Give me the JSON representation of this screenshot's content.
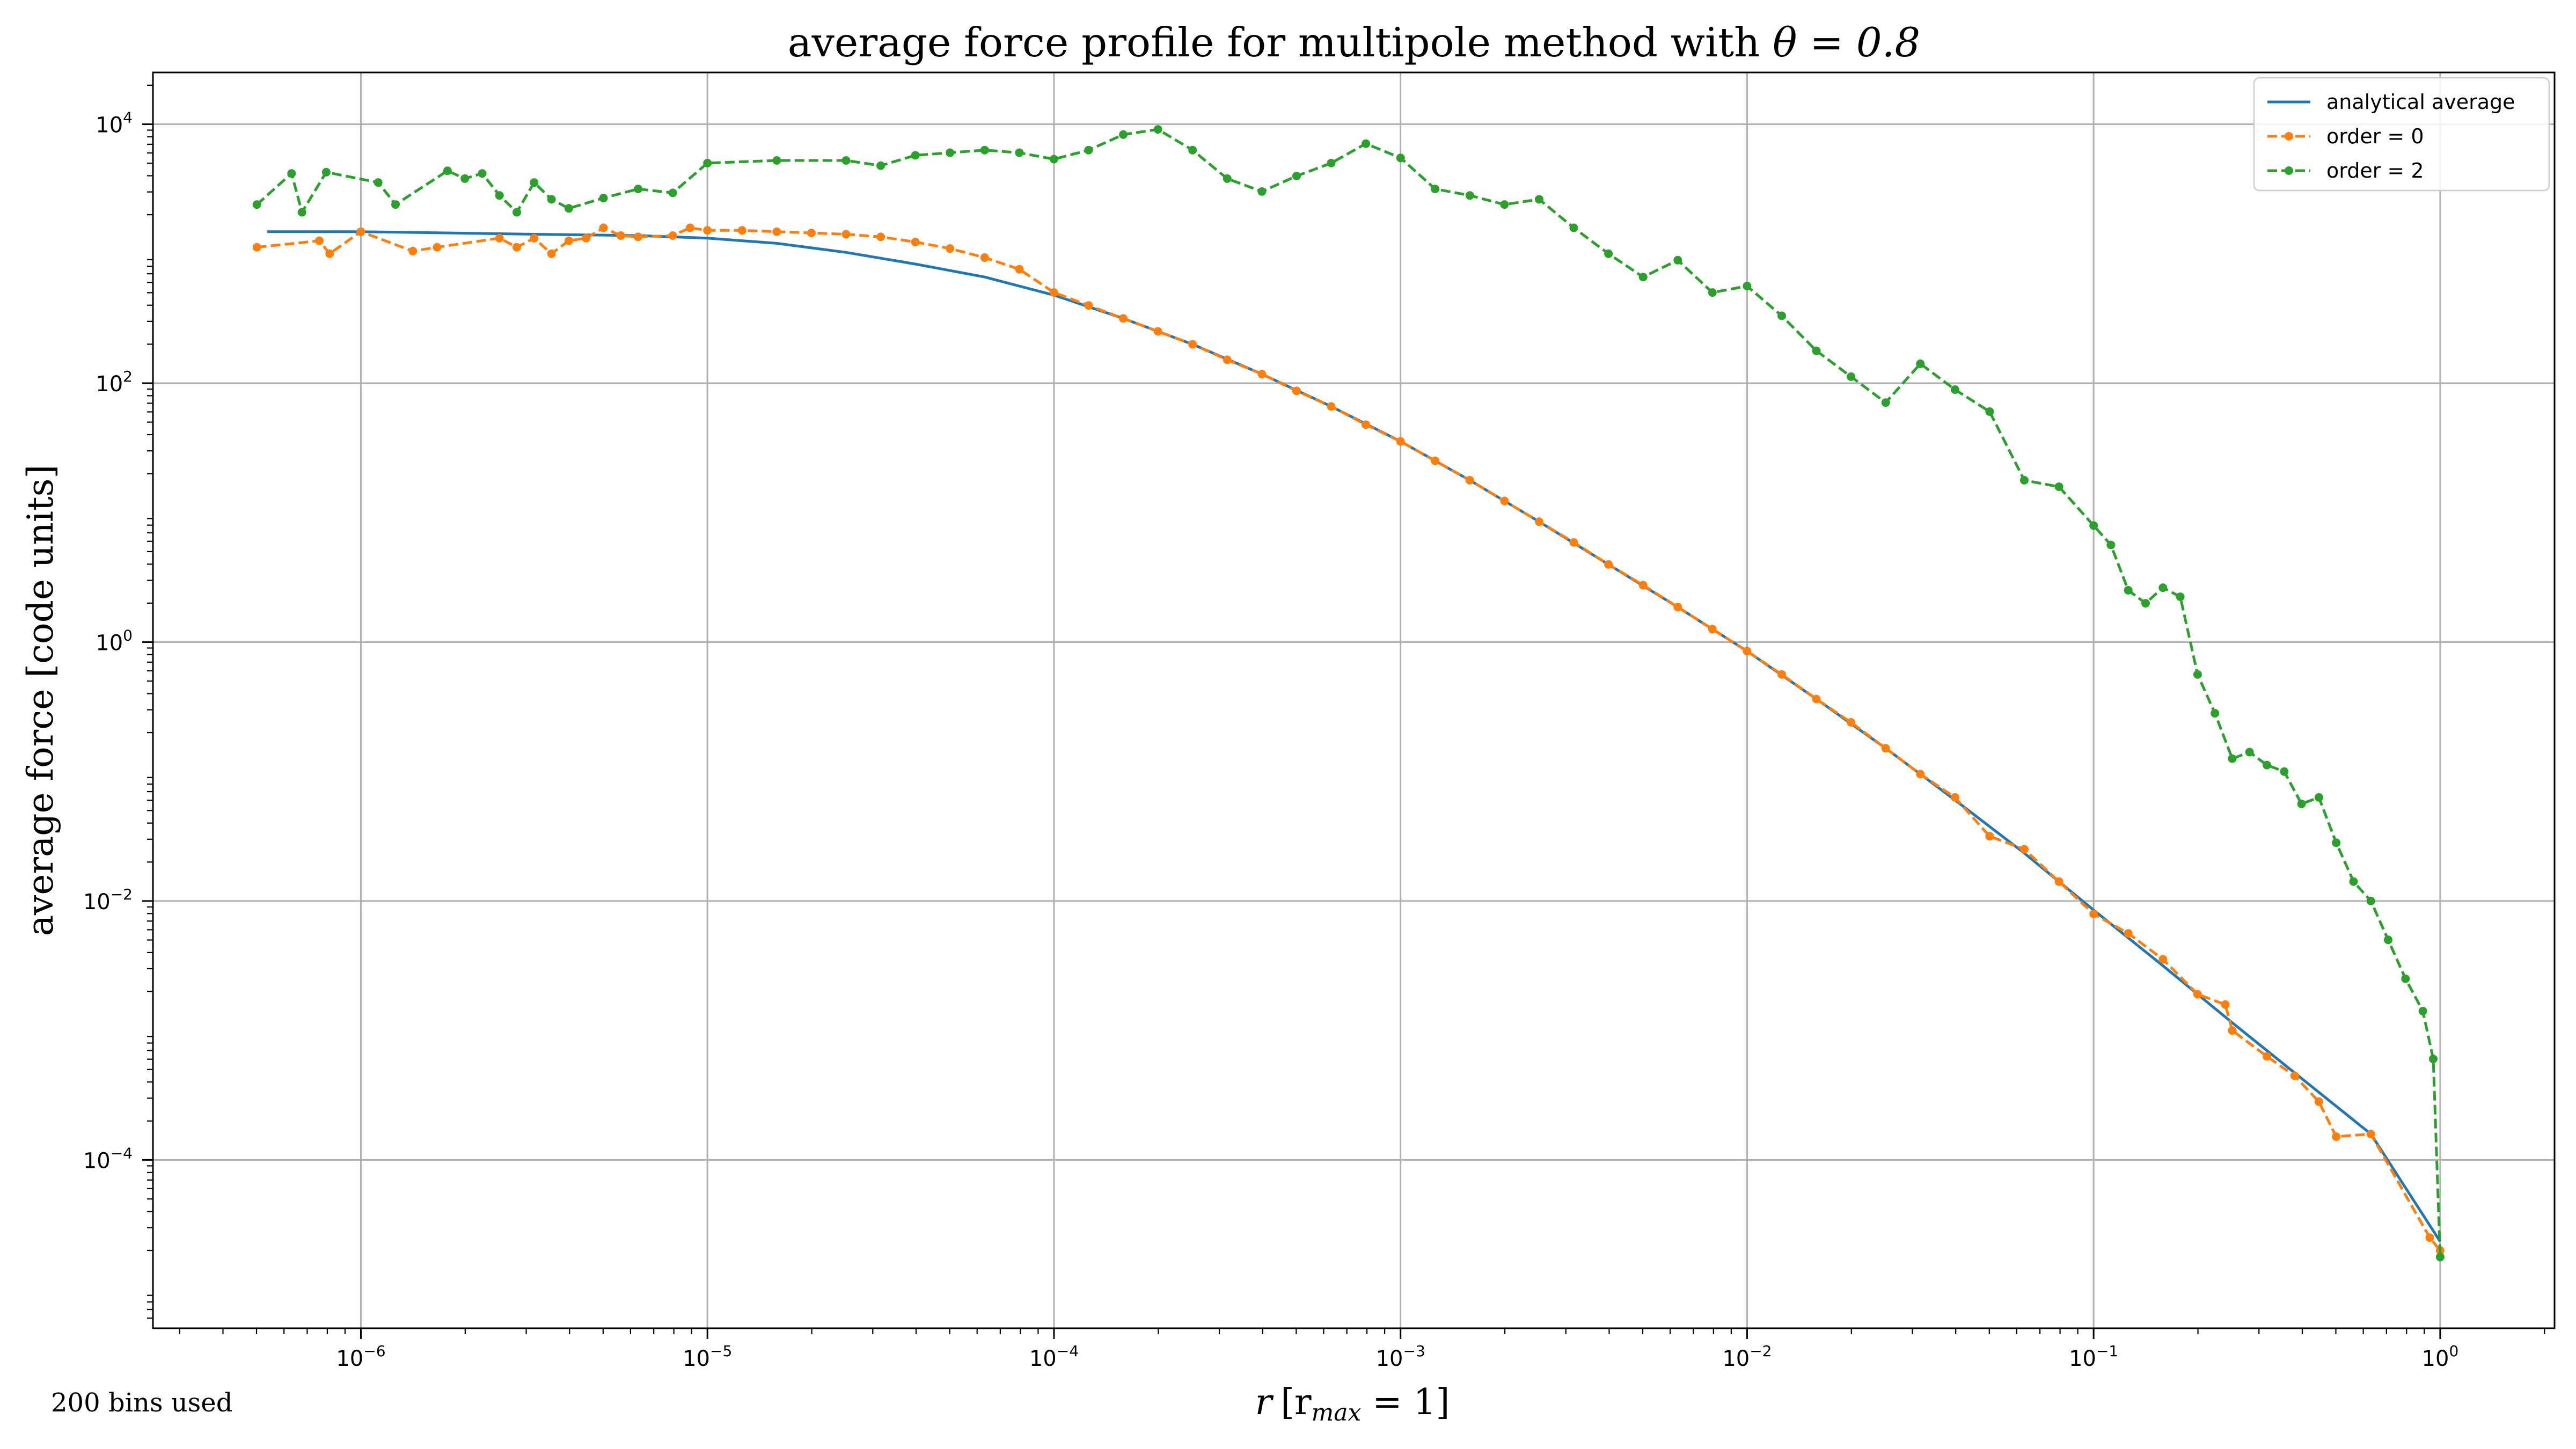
{
  "chart_data": {
    "type": "line",
    "title_prefix": "average force profile for multipole method with ",
    "title_math": "θ = 0.8",
    "xlabel_var": "r",
    "xlabel_unit": "[r",
    "xlabel_sub": "max",
    "xlabel_end": " = 1]",
    "ylabel": "average force [code units]",
    "xscale": "log",
    "yscale": "log",
    "xlim_exp": [
      -6.6,
      0.33
    ],
    "ylim_exp": [
      -5.3,
      4.4
    ],
    "grid": true,
    "legend_position": "top-right",
    "xticks": [
      {
        "base": "10",
        "exp": "−6",
        "value": -6
      },
      {
        "base": "10",
        "exp": "−5",
        "value": -5
      },
      {
        "base": "10",
        "exp": "−4",
        "value": -4
      },
      {
        "base": "10",
        "exp": "−3",
        "value": -3
      },
      {
        "base": "10",
        "exp": "−2",
        "value": -2
      },
      {
        "base": "10",
        "exp": "−1",
        "value": -1
      },
      {
        "base": "10",
        "exp": "0",
        "value": 0
      }
    ],
    "yticks": [
      {
        "base": "10",
        "exp": "4",
        "value": 4
      },
      {
        "base": "10",
        "exp": "2",
        "value": 2
      },
      {
        "base": "10",
        "exp": "0",
        "value": 0
      },
      {
        "base": "10",
        "exp": "−2",
        "value": -2
      },
      {
        "base": "10",
        "exp": "−4",
        "value": -4
      }
    ],
    "series": [
      {
        "name": "analytical average",
        "color": "#1f77b4",
        "style": "solid",
        "markers": false,
        "points_log10": [
          [
            -6.27,
            3.17
          ],
          [
            -6.0,
            3.17
          ],
          [
            -5.5,
            3.15
          ],
          [
            -5.2,
            3.14
          ],
          [
            -5.0,
            3.12
          ],
          [
            -4.8,
            3.08
          ],
          [
            -4.6,
            3.01
          ],
          [
            -4.4,
            2.92
          ],
          [
            -4.2,
            2.82
          ],
          [
            -4.0,
            2.68
          ],
          [
            -3.8,
            2.5
          ],
          [
            -3.6,
            2.3
          ],
          [
            -3.4,
            2.07
          ],
          [
            -3.2,
            1.82
          ],
          [
            -3.0,
            1.55
          ],
          [
            -2.8,
            1.25
          ],
          [
            -2.6,
            0.93
          ],
          [
            -2.4,
            0.6
          ],
          [
            -2.2,
            0.27
          ],
          [
            -2.0,
            -0.07
          ],
          [
            -1.8,
            -0.44
          ],
          [
            -1.6,
            -0.82
          ],
          [
            -1.4,
            -1.22
          ],
          [
            -1.2,
            -1.63
          ],
          [
            -1.0,
            -2.07
          ],
          [
            -0.8,
            -2.5
          ],
          [
            -0.6,
            -2.94
          ],
          [
            -0.4,
            -3.37
          ],
          [
            -0.2,
            -3.8
          ],
          [
            0.0,
            -4.63
          ]
        ]
      },
      {
        "name": "order = 0",
        "color": "#ff7f0e",
        "style": "dashed",
        "markers": true,
        "points_log10": [
          [
            -6.3,
            3.05
          ],
          [
            -6.12,
            3.1
          ],
          [
            -6.09,
            3.0
          ],
          [
            -6.0,
            3.17
          ],
          [
            -5.85,
            3.02
          ],
          [
            -5.78,
            3.05
          ],
          [
            -5.6,
            3.12
          ],
          [
            -5.55,
            3.05
          ],
          [
            -5.5,
            3.12
          ],
          [
            -5.45,
            3.0
          ],
          [
            -5.4,
            3.1
          ],
          [
            -5.35,
            3.12
          ],
          [
            -5.3,
            3.2
          ],
          [
            -5.25,
            3.14
          ],
          [
            -5.2,
            3.13
          ],
          [
            -5.1,
            3.14
          ],
          [
            -5.05,
            3.2
          ],
          [
            -5.0,
            3.18
          ],
          [
            -4.9,
            3.18
          ],
          [
            -4.8,
            3.17
          ],
          [
            -4.7,
            3.16
          ],
          [
            -4.6,
            3.15
          ],
          [
            -4.5,
            3.13
          ],
          [
            -4.4,
            3.09
          ],
          [
            -4.3,
            3.04
          ],
          [
            -4.2,
            2.97
          ],
          [
            -4.1,
            2.88
          ],
          [
            -4.0,
            2.7
          ],
          [
            -3.9,
            2.6
          ],
          [
            -3.8,
            2.5
          ],
          [
            -3.7,
            2.4
          ],
          [
            -3.6,
            2.3
          ],
          [
            -3.5,
            2.18
          ],
          [
            -3.4,
            2.07
          ],
          [
            -3.3,
            1.94
          ],
          [
            -3.2,
            1.82
          ],
          [
            -3.1,
            1.68
          ],
          [
            -3.0,
            1.55
          ],
          [
            -2.9,
            1.4
          ],
          [
            -2.8,
            1.25
          ],
          [
            -2.7,
            1.09
          ],
          [
            -2.6,
            0.93
          ],
          [
            -2.5,
            0.77
          ],
          [
            -2.4,
            0.6
          ],
          [
            -2.3,
            0.44
          ],
          [
            -2.2,
            0.27
          ],
          [
            -2.1,
            0.1
          ],
          [
            -2.0,
            -0.07
          ],
          [
            -1.9,
            -0.25
          ],
          [
            -1.8,
            -0.44
          ],
          [
            -1.7,
            -0.62
          ],
          [
            -1.6,
            -0.82
          ],
          [
            -1.5,
            -1.02
          ],
          [
            -1.4,
            -1.2
          ],
          [
            -1.3,
            -1.5
          ],
          [
            -1.2,
            -1.6
          ],
          [
            -1.1,
            -1.85
          ],
          [
            -1.0,
            -2.1
          ],
          [
            -0.9,
            -2.25
          ],
          [
            -0.8,
            -2.45
          ],
          [
            -0.7,
            -2.72
          ],
          [
            -0.62,
            -2.8
          ],
          [
            -0.6,
            -3.0
          ],
          [
            -0.5,
            -3.2
          ],
          [
            -0.42,
            -3.35
          ],
          [
            -0.35,
            -3.55
          ],
          [
            -0.3,
            -3.82
          ],
          [
            -0.2,
            -3.8
          ],
          [
            -0.03,
            -4.6
          ],
          [
            0.0,
            -4.7
          ]
        ]
      },
      {
        "name": "order = 2",
        "color": "#2ca02c",
        "style": "dashed",
        "markers": true,
        "points_log10": [
          [
            -6.3,
            3.38
          ],
          [
            -6.2,
            3.62
          ],
          [
            -6.17,
            3.32
          ],
          [
            -6.1,
            3.63
          ],
          [
            -5.95,
            3.55
          ],
          [
            -5.9,
            3.38
          ],
          [
            -5.75,
            3.64
          ],
          [
            -5.7,
            3.58
          ],
          [
            -5.65,
            3.62
          ],
          [
            -5.6,
            3.45
          ],
          [
            -5.55,
            3.32
          ],
          [
            -5.5,
            3.55
          ],
          [
            -5.45,
            3.42
          ],
          [
            -5.4,
            3.35
          ],
          [
            -5.3,
            3.43
          ],
          [
            -5.2,
            3.5
          ],
          [
            -5.1,
            3.47
          ],
          [
            -5.0,
            3.7
          ],
          [
            -4.8,
            3.72
          ],
          [
            -4.6,
            3.72
          ],
          [
            -4.5,
            3.68
          ],
          [
            -4.4,
            3.76
          ],
          [
            -4.3,
            3.78
          ],
          [
            -4.2,
            3.8
          ],
          [
            -4.1,
            3.78
          ],
          [
            -4.0,
            3.73
          ],
          [
            -3.9,
            3.8
          ],
          [
            -3.8,
            3.92
          ],
          [
            -3.7,
            3.96
          ],
          [
            -3.6,
            3.8
          ],
          [
            -3.5,
            3.58
          ],
          [
            -3.4,
            3.48
          ],
          [
            -3.3,
            3.6
          ],
          [
            -3.2,
            3.7
          ],
          [
            -3.1,
            3.85
          ],
          [
            -3.0,
            3.74
          ],
          [
            -2.9,
            3.5
          ],
          [
            -2.8,
            3.45
          ],
          [
            -2.7,
            3.38
          ],
          [
            -2.6,
            3.42
          ],
          [
            -2.5,
            3.2
          ],
          [
            -2.4,
            3.0
          ],
          [
            -2.3,
            2.82
          ],
          [
            -2.2,
            2.95
          ],
          [
            -2.1,
            2.7
          ],
          [
            -2.0,
            2.75
          ],
          [
            -1.9,
            2.52
          ],
          [
            -1.8,
            2.25
          ],
          [
            -1.7,
            2.05
          ],
          [
            -1.6,
            1.85
          ],
          [
            -1.5,
            2.15
          ],
          [
            -1.4,
            1.95
          ],
          [
            -1.3,
            1.78
          ],
          [
            -1.2,
            1.25
          ],
          [
            -1.1,
            1.2
          ],
          [
            -1.0,
            0.9
          ],
          [
            -0.95,
            0.75
          ],
          [
            -0.9,
            0.4
          ],
          [
            -0.85,
            0.3
          ],
          [
            -0.8,
            0.42
          ],
          [
            -0.75,
            0.35
          ],
          [
            -0.7,
            -0.25
          ],
          [
            -0.65,
            -0.55
          ],
          [
            -0.6,
            -0.9
          ],
          [
            -0.55,
            -0.85
          ],
          [
            -0.5,
            -0.95
          ],
          [
            -0.45,
            -1.0
          ],
          [
            -0.4,
            -1.25
          ],
          [
            -0.35,
            -1.2
          ],
          [
            -0.3,
            -1.55
          ],
          [
            -0.25,
            -1.85
          ],
          [
            -0.2,
            -2.0
          ],
          [
            -0.15,
            -2.3
          ],
          [
            -0.1,
            -2.6
          ],
          [
            -0.05,
            -2.85
          ],
          [
            -0.02,
            -3.22
          ],
          [
            0.0,
            -4.75
          ]
        ]
      }
    ],
    "annotation": "200 bins used"
  }
}
